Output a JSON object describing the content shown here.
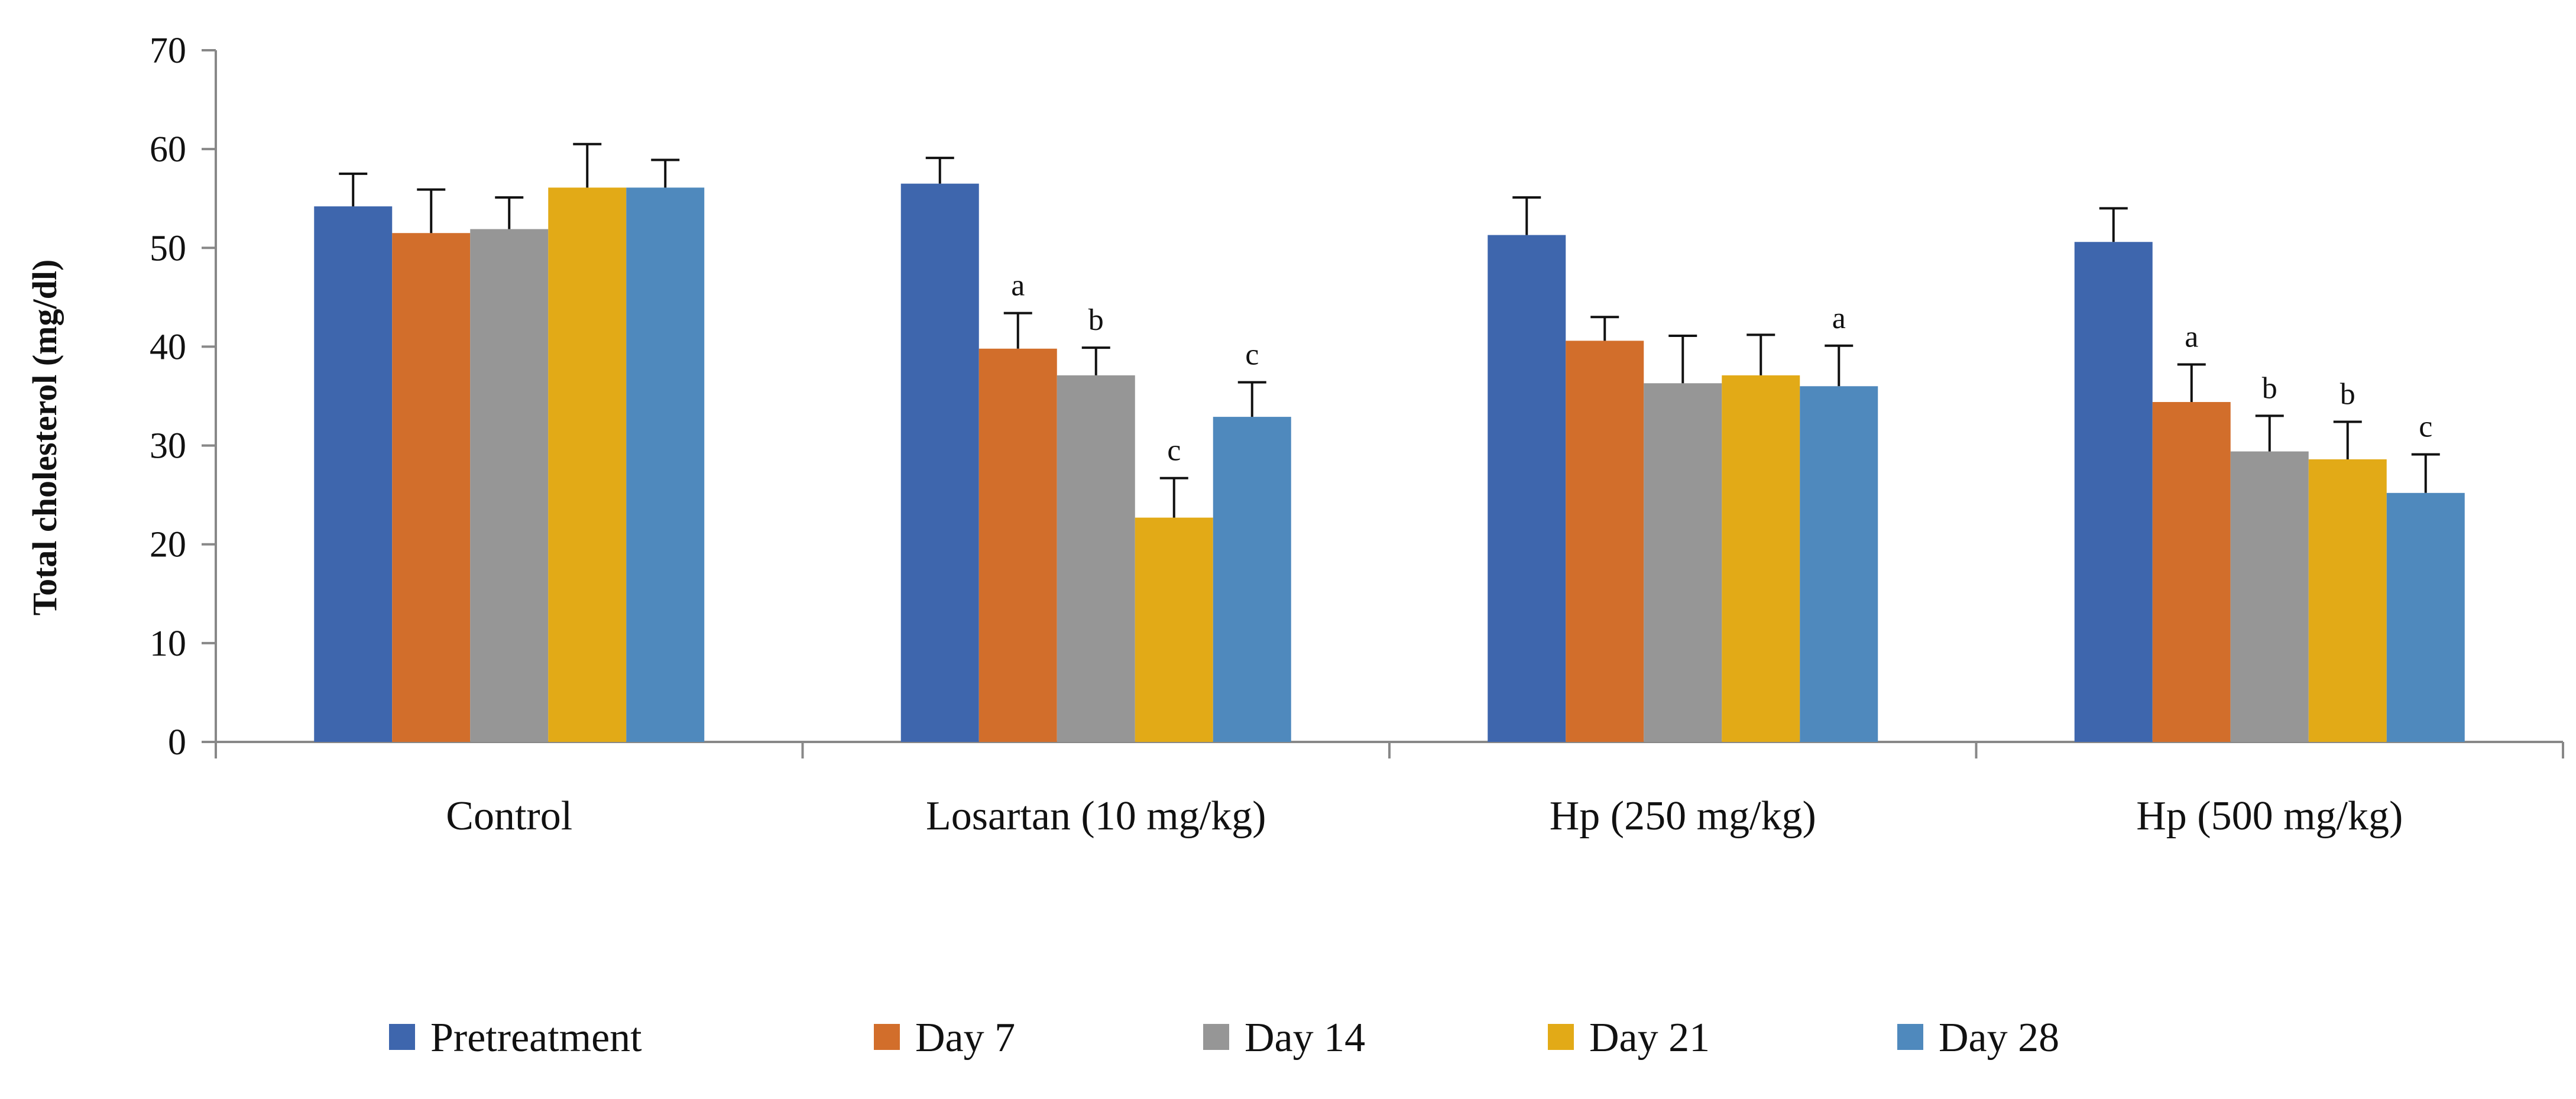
{
  "chart_data": {
    "type": "bar",
    "title": "",
    "xlabel": "",
    "ylabel": "Total cholesterol (mg/dl)",
    "ylim": [
      0,
      70
    ],
    "yticks": [
      0,
      10,
      20,
      30,
      40,
      50,
      60,
      70
    ],
    "grid": false,
    "legend_position": "bottom",
    "categories": [
      "Control",
      "Losartan (10 mg/kg)",
      "Hp (250 mg/kg)",
      "Hp (500 mg/kg)"
    ],
    "series": [
      {
        "name": "Pretreatment",
        "color": "#3e66ad",
        "values": [
          54.2,
          56.5,
          51.3,
          50.6
        ],
        "errors": [
          3.3,
          2.6,
          3.8,
          3.4
        ],
        "labels": [
          "",
          "",
          "",
          ""
        ]
      },
      {
        "name": "Day 7",
        "color": "#d26e2b",
        "values": [
          51.5,
          39.8,
          40.6,
          34.4
        ],
        "errors": [
          4.4,
          3.6,
          2.4,
          3.8
        ],
        "labels": [
          "",
          "a",
          "",
          "a"
        ]
      },
      {
        "name": "Day 14",
        "color": "#969696",
        "values": [
          51.9,
          37.1,
          36.3,
          29.4
        ],
        "errors": [
          3.2,
          2.8,
          4.8,
          3.6
        ],
        "labels": [
          "",
          "b",
          "",
          "b"
        ]
      },
      {
        "name": "Day 21",
        "color": "#e2aa17",
        "values": [
          56.1,
          22.7,
          37.1,
          28.6
        ],
        "errors": [
          4.4,
          4.0,
          4.1,
          3.8
        ],
        "labels": [
          "",
          "c",
          "",
          "b"
        ]
      },
      {
        "name": "Day 28",
        "color": "#4f89bd",
        "values": [
          56.1,
          32.9,
          36.0,
          25.2
        ],
        "errors": [
          2.8,
          3.5,
          4.1,
          3.9
        ],
        "labels": [
          "",
          "c",
          "a",
          "c"
        ]
      }
    ]
  }
}
